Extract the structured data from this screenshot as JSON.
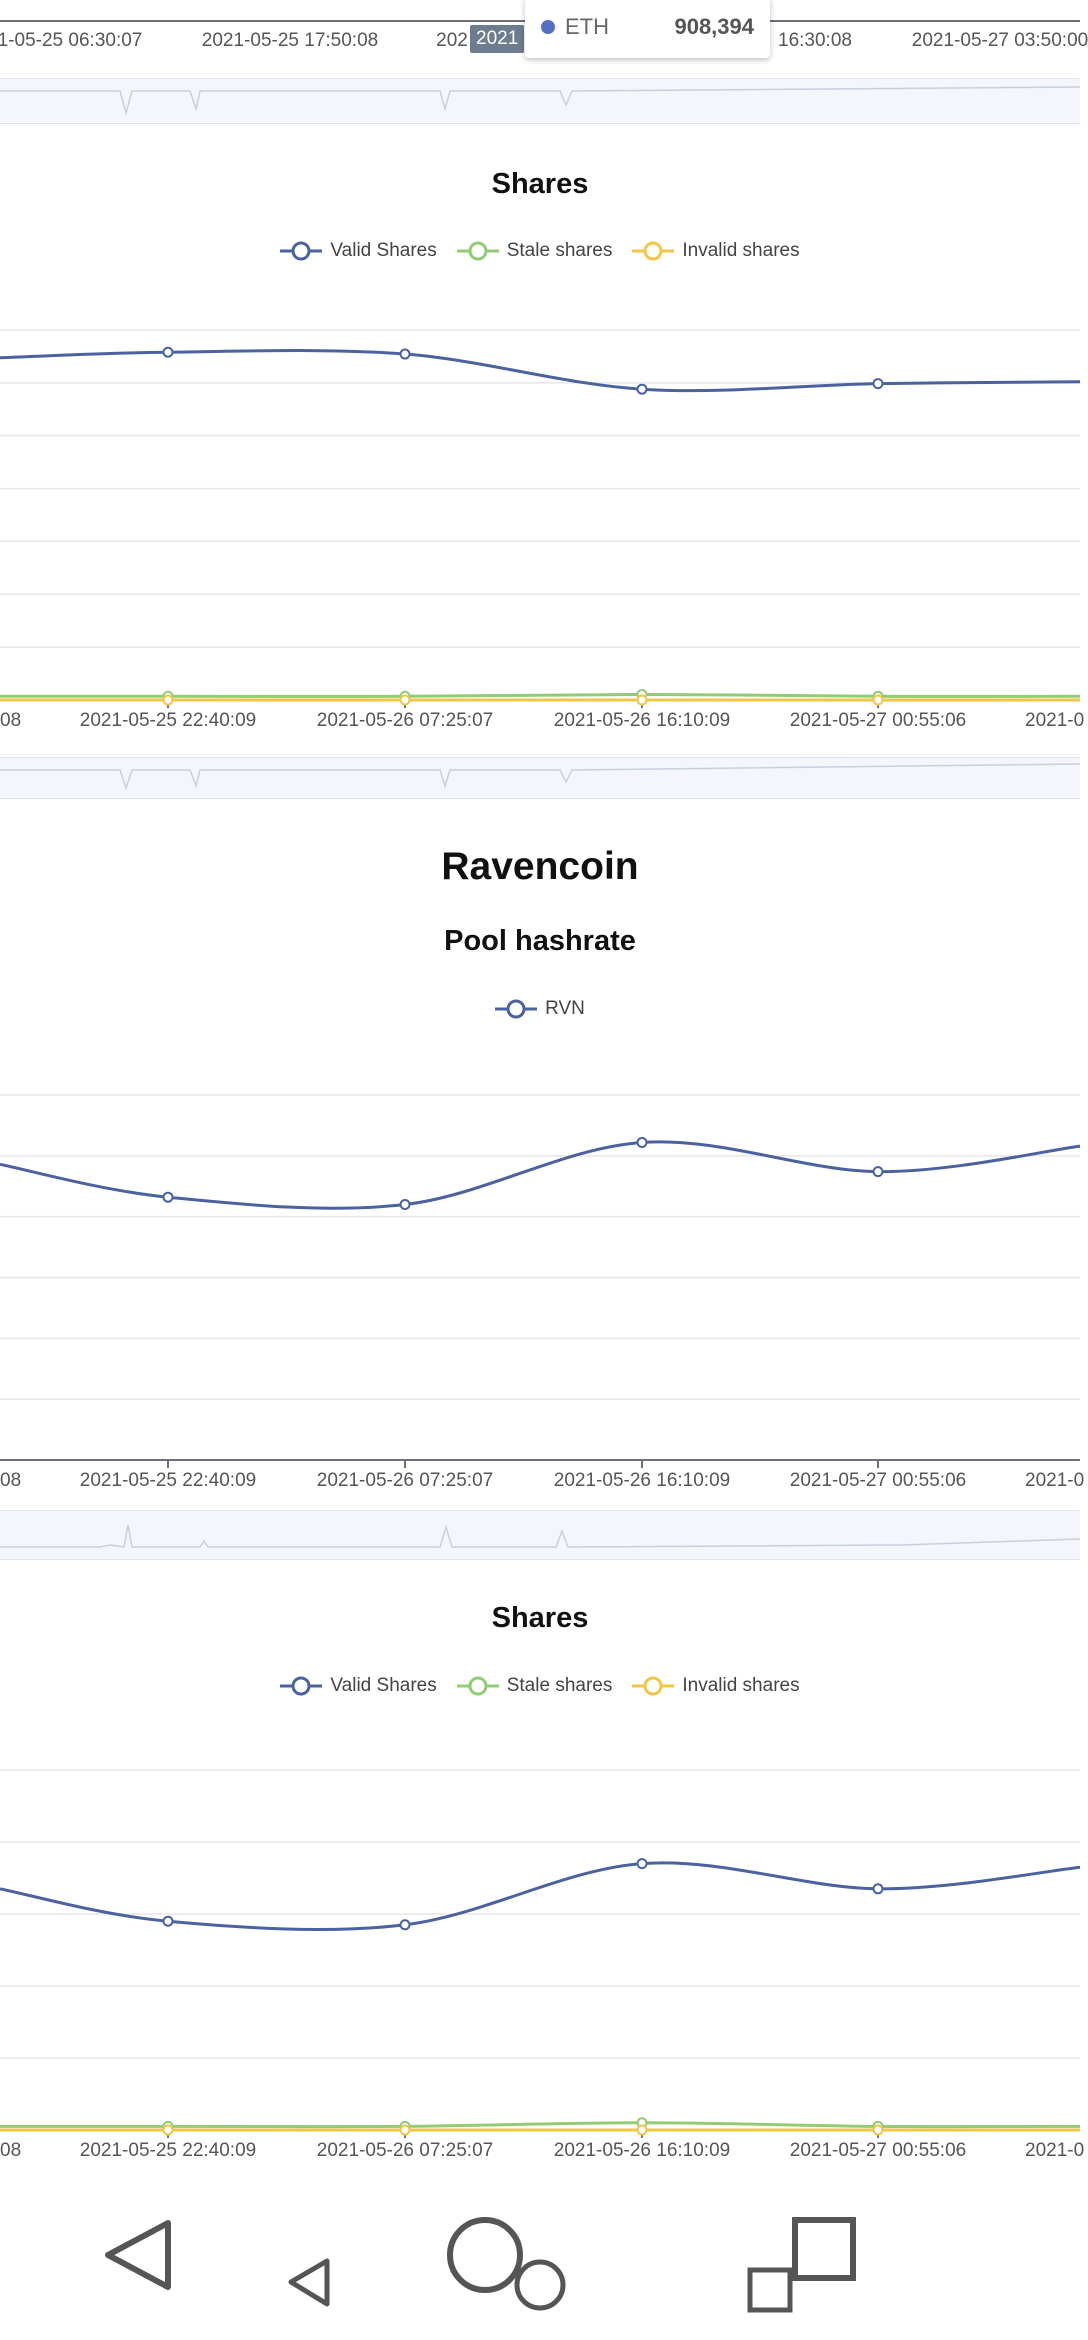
{
  "top_axis": {
    "labels": [
      "1-05-25 06:30:07",
      "2021-05-25 17:50:08",
      "202",
      "16:30:08",
      "2021-05-27 03:50:00"
    ],
    "active_tag": "2021"
  },
  "tooltip": {
    "series": "ETH",
    "value": "908,394",
    "color": "#5470c6"
  },
  "colors": {
    "valid": "#4a62a0",
    "stale": "#91cc75",
    "invalid": "#f0c644",
    "rvn": "#4a62a0",
    "grid": "#e6e6e6",
    "axis": "#6e7079"
  },
  "eth_shares": {
    "title": "Shares",
    "legend": [
      "Valid Shares",
      "Stale shares",
      "Invalid shares"
    ],
    "x_ticks": [
      "08",
      "2021-05-25 22:40:09",
      "2021-05-26 07:25:07",
      "2021-05-26 16:10:09",
      "2021-05-27 00:55:06",
      "2021-0"
    ]
  },
  "ravencoin": {
    "coin_title": "Ravencoin",
    "hashrate_title": "Pool hashrate",
    "hashrate_legend": [
      "RVN"
    ],
    "hashrate_x_ticks": [
      "08",
      "2021-05-25 22:40:09",
      "2021-05-26 07:25:07",
      "2021-05-26 16:10:09",
      "2021-05-27 00:55:06",
      "2021-0"
    ],
    "shares_title": "Shares",
    "shares_legend": [
      "Valid Shares",
      "Stale shares",
      "Invalid shares"
    ],
    "shares_x_ticks": [
      "08",
      "2021-05-25 22:40:09",
      "2021-05-26 07:25:07",
      "2021-05-26 16:10:09",
      "2021-05-27 00:55:06",
      "2021-0"
    ]
  },
  "chart_data": [
    {
      "type": "line",
      "title": "Shares",
      "categories": [
        "",
        "2021-05-25 22:40:09",
        "2021-05-26 07:25:07",
        "2021-05-26 16:10:09",
        "2021-05-27 00:55:06",
        ""
      ],
      "series": [
        {
          "name": "Valid Shares",
          "values": [
            0.925,
            0.94,
            0.935,
            0.84,
            0.855,
            0.86
          ]
        },
        {
          "name": "Stale shares",
          "values": [
            0.01,
            0.01,
            0.01,
            0.015,
            0.01,
            0.01
          ]
        },
        {
          "name": "Invalid shares",
          "values": [
            0.0,
            0.0,
            0.0,
            0.0,
            0.0,
            0.0
          ]
        }
      ],
      "ylim": [
        0,
        1.0
      ],
      "grid": true,
      "legend_position": "top"
    },
    {
      "type": "line",
      "title": "Pool hashrate",
      "categories": [
        "",
        "2021-05-25 22:40:09",
        "2021-05-26 07:25:07",
        "2021-05-26 16:10:09",
        "2021-05-27 00:55:06",
        ""
      ],
      "series": [
        {
          "name": "RVN",
          "values": [
            0.81,
            0.72,
            0.7,
            0.87,
            0.79,
            0.86
          ]
        }
      ],
      "ylim": [
        0,
        1.0
      ],
      "grid": true,
      "legend_position": "top"
    },
    {
      "type": "line",
      "title": "Shares",
      "categories": [
        "",
        "2021-05-25 22:40:09",
        "2021-05-26 07:25:07",
        "2021-05-26 16:10:09",
        "2021-05-27 00:55:06",
        ""
      ],
      "series": [
        {
          "name": "Valid Shares",
          "values": [
            0.67,
            0.58,
            0.57,
            0.74,
            0.67,
            0.73
          ]
        },
        {
          "name": "Stale shares",
          "values": [
            0.01,
            0.01,
            0.01,
            0.02,
            0.01,
            0.01
          ]
        },
        {
          "name": "Invalid shares",
          "values": [
            0.0,
            0.0,
            0.0,
            0.0,
            0.0,
            0.0
          ]
        }
      ],
      "ylim": [
        0,
        1.0
      ],
      "grid": true,
      "legend_position": "top"
    }
  ],
  "navbar": {
    "icons": [
      "back-triangle-icon",
      "small-back-triangle-icon",
      "home-circles-icon",
      "recent-squares-icon"
    ]
  }
}
